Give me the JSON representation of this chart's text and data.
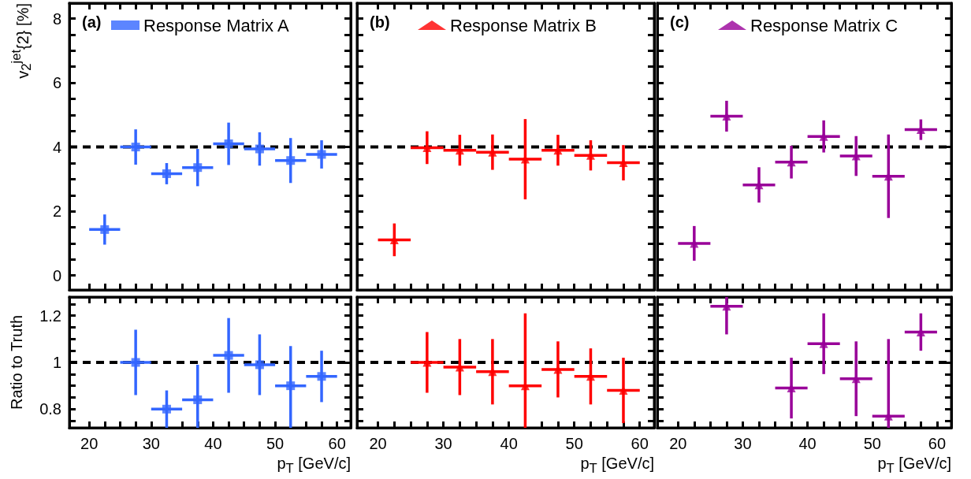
{
  "chart_data": [
    {
      "type": "scatter",
      "ylabel": "v$_{2}$$^{jet}${2} [%]",
      "annotations": [
        "(a)"
      ],
      "legend": "top left",
      "marker": "square",
      "tick_labels": "y",
      "xlim": [
        16.8,
        62.2
      ],
      "ylim": [
        -0.45,
        8.48
      ],
      "xticks": [
        20,
        {
          "value": 22.5,
          "label": null
        },
        {
          "value": 25,
          "label": null
        },
        {
          "value": 27.5,
          "label": null
        },
        30,
        {
          "value": 32.5,
          "label": null
        },
        {
          "value": 35,
          "label": null
        },
        {
          "value": 37.5,
          "label": null
        },
        40,
        {
          "value": 42.5,
          "label": null
        },
        {
          "value": 45,
          "label": null
        },
        {
          "value": 47.5,
          "label": null
        },
        50,
        {
          "value": 52.5,
          "label": null
        },
        {
          "value": 55,
          "label": null
        },
        {
          "value": 57.5,
          "label": null
        },
        60
      ],
      "yticks": [
        0,
        {
          "value": 0.5,
          "label": null
        },
        {
          "value": 1,
          "label": null
        },
        {
          "value": 1.5,
          "label": null
        },
        2,
        {
          "value": 2.5,
          "label": null
        },
        {
          "value": 3,
          "label": null
        },
        {
          "value": 3.5,
          "label": null
        },
        4,
        {
          "value": 4.5,
          "label": null
        },
        {
          "value": 5,
          "label": null
        },
        {
          "value": 5.5,
          "label": null
        },
        6,
        {
          "value": 6.5,
          "label": null
        },
        {
          "value": 7,
          "label": null
        },
        {
          "value": 7.5,
          "label": null
        },
        8
      ],
      "ref_lines": [
        {
          "axis": "y",
          "value": 4,
          "line_style": "dashed",
          "color": "#000000"
        }
      ],
      "x": [
        22.5,
        27.5,
        32.5,
        37.5,
        42.5,
        47.5,
        52.5,
        57.5
      ],
      "series": [
        {
          "name": "Response Matrix A",
          "color": "#3366ff",
          "values": [
            1.43,
            4.0,
            3.17,
            3.36,
            4.1,
            3.94,
            3.58,
            3.77
          ],
          "errors": [
            0.47,
            0.55,
            0.33,
            0.58,
            0.66,
            0.52,
            0.7,
            0.44
          ],
          "xerrors": [
            2.5,
            2.5,
            2.5,
            2.5,
            2.5,
            2.5,
            2.5,
            2.5
          ]
        }
      ]
    },
    {
      "type": "scatter",
      "annotations": [
        "(b)"
      ],
      "legend": "top left",
      "marker": "triangle",
      "tick_labels": false,
      "xlim": [
        16.8,
        62.2
      ],
      "ylim": [
        -0.45,
        8.48
      ],
      "xticks": [
        20,
        {
          "value": 22.5,
          "label": null
        },
        {
          "value": 25,
          "label": null
        },
        {
          "value": 27.5,
          "label": null
        },
        30,
        {
          "value": 32.5,
          "label": null
        },
        {
          "value": 35,
          "label": null
        },
        {
          "value": 37.5,
          "label": null
        },
        40,
        {
          "value": 42.5,
          "label": null
        },
        {
          "value": 45,
          "label": null
        },
        {
          "value": 47.5,
          "label": null
        },
        50,
        {
          "value": 52.5,
          "label": null
        },
        {
          "value": 55,
          "label": null
        },
        {
          "value": 57.5,
          "label": null
        },
        60
      ],
      "yticks": [
        0,
        {
          "value": 0.5,
          "label": null
        },
        {
          "value": 1,
          "label": null
        },
        {
          "value": 1.5,
          "label": null
        },
        2,
        {
          "value": 2.5,
          "label": null
        },
        {
          "value": 3,
          "label": null
        },
        {
          "value": 3.5,
          "label": null
        },
        4,
        {
          "value": 4.5,
          "label": null
        },
        {
          "value": 5,
          "label": null
        },
        {
          "value": 5.5,
          "label": null
        },
        6,
        {
          "value": 6.5,
          "label": null
        },
        {
          "value": 7,
          "label": null
        },
        {
          "value": 7.5,
          "label": null
        },
        8
      ],
      "ref_lines": [
        {
          "axis": "y",
          "value": 4,
          "line_style": "dashed",
          "color": "#000000"
        }
      ],
      "x": [
        22.5,
        27.5,
        32.5,
        37.5,
        42.5,
        47.5,
        52.5,
        57.5
      ],
      "series": [
        {
          "name": "Response Matrix B",
          "color": "#ff0000",
          "values": [
            1.11,
            3.98,
            3.9,
            3.84,
            3.62,
            3.9,
            3.74,
            3.51
          ],
          "errors": [
            0.51,
            0.51,
            0.48,
            0.55,
            1.25,
            0.48,
            0.47,
            0.55
          ],
          "xerrors": [
            2.5,
            2.5,
            2.5,
            2.5,
            2.5,
            2.5,
            2.5,
            2.5
          ]
        }
      ]
    },
    {
      "type": "scatter",
      "annotations": [
        "(c)"
      ],
      "legend": "top left",
      "marker": "triangle",
      "tick_labels": false,
      "xlim": [
        16.8,
        62.2
      ],
      "ylim": [
        -0.45,
        8.48
      ],
      "xticks": [
        20,
        {
          "value": 22.5,
          "label": null
        },
        {
          "value": 25,
          "label": null
        },
        {
          "value": 27.5,
          "label": null
        },
        30,
        {
          "value": 32.5,
          "label": null
        },
        {
          "value": 35,
          "label": null
        },
        {
          "value": 37.5,
          "label": null
        },
        40,
        {
          "value": 42.5,
          "label": null
        },
        {
          "value": 45,
          "label": null
        },
        {
          "value": 47.5,
          "label": null
        },
        50,
        {
          "value": 52.5,
          "label": null
        },
        {
          "value": 55,
          "label": null
        },
        {
          "value": 57.5,
          "label": null
        },
        60
      ],
      "yticks": [
        0,
        {
          "value": 0.5,
          "label": null
        },
        {
          "value": 1,
          "label": null
        },
        {
          "value": 1.5,
          "label": null
        },
        2,
        {
          "value": 2.5,
          "label": null
        },
        {
          "value": 3,
          "label": null
        },
        {
          "value": 3.5,
          "label": null
        },
        4,
        {
          "value": 4.5,
          "label": null
        },
        {
          "value": 5,
          "label": null
        },
        {
          "value": 5.5,
          "label": null
        },
        6,
        {
          "value": 6.5,
          "label": null
        },
        {
          "value": 7,
          "label": null
        },
        {
          "value": 7.5,
          "label": null
        },
        8
      ],
      "ref_lines": [
        {
          "axis": "y",
          "value": 4,
          "line_style": "dashed",
          "color": "#000000"
        }
      ],
      "x": [
        22.5,
        27.5,
        32.5,
        37.5,
        42.5,
        47.5,
        52.5,
        57.5
      ],
      "series": [
        {
          "name": "Response Matrix C",
          "color": "#990099",
          "values": [
            1.0,
            4.96,
            2.82,
            3.53,
            4.33,
            3.72,
            3.09,
            4.54
          ],
          "errors": [
            0.54,
            0.48,
            0.55,
            0.51,
            0.5,
            0.62,
            1.3,
            0.32
          ],
          "xerrors": [
            2.5,
            2.5,
            2.5,
            2.5,
            2.5,
            2.5,
            2.5,
            2.5
          ]
        }
      ]
    },
    {
      "type": "scatter",
      "ylabel": "Ratio to Truth",
      "xlabel": "p$_{T}$ [GeV/c]",
      "marker": "square",
      "xlim": [
        16.8,
        62.2
      ],
      "ylim": [
        0.72,
        1.28
      ],
      "xticks": [
        20,
        {
          "value": 22.5,
          "label": null
        },
        {
          "value": 25,
          "label": null
        },
        {
          "value": 27.5,
          "label": null
        },
        30,
        {
          "value": 32.5,
          "label": null
        },
        {
          "value": 35,
          "label": null
        },
        {
          "value": 37.5,
          "label": null
        },
        40,
        {
          "value": 42.5,
          "label": null
        },
        {
          "value": 45,
          "label": null
        },
        {
          "value": 47.5,
          "label": null
        },
        50,
        {
          "value": 52.5,
          "label": null
        },
        {
          "value": 55,
          "label": null
        },
        {
          "value": 57.5,
          "label": null
        },
        60
      ],
      "yticks": [
        {
          "value": 0.75,
          "label": null
        },
        0.8,
        {
          "value": 0.85,
          "label": null
        },
        {
          "value": 0.9,
          "label": null
        },
        {
          "value": 0.95,
          "label": null
        },
        1,
        {
          "value": 1.05,
          "label": null
        },
        {
          "value": 1.1,
          "label": null
        },
        {
          "value": 1.15,
          "label": null
        },
        1.2,
        {
          "value": 1.25,
          "label": null
        }
      ],
      "ref_lines": [
        {
          "axis": "y",
          "value": 1,
          "line_style": "dashed",
          "color": "#000000"
        }
      ],
      "series": [
        {
          "color": "#3366ff",
          "x": [
            27.5,
            32.5,
            37.5,
            42.5,
            47.5,
            52.5,
            57.5
          ],
          "values": [
            1.0,
            0.8,
            0.84,
            1.03,
            0.99,
            0.9,
            0.94
          ],
          "errors": [
            0.14,
            [
              0.72,
              0.88
            ],
            [
              0.72,
              0.99
            ],
            0.16,
            0.13,
            [
              0.72,
              1.07
            ],
            0.11
          ],
          "xerrors": [
            2.5,
            2.5,
            2.5,
            2.5,
            2.5,
            2.5,
            2.5
          ]
        }
      ]
    },
    {
      "type": "scatter",
      "xlabel": "p$_{T}$ [GeV/c]",
      "marker": "triangle",
      "tick_labels": "x",
      "xlim": [
        16.8,
        62.2
      ],
      "ylim": [
        0.72,
        1.28
      ],
      "xticks": [
        20,
        {
          "value": 22.5,
          "label": null
        },
        {
          "value": 25,
          "label": null
        },
        {
          "value": 27.5,
          "label": null
        },
        30,
        {
          "value": 32.5,
          "label": null
        },
        {
          "value": 35,
          "label": null
        },
        {
          "value": 37.5,
          "label": null
        },
        40,
        {
          "value": 42.5,
          "label": null
        },
        {
          "value": 45,
          "label": null
        },
        {
          "value": 47.5,
          "label": null
        },
        50,
        {
          "value": 52.5,
          "label": null
        },
        {
          "value": 55,
          "label": null
        },
        {
          "value": 57.5,
          "label": null
        },
        60
      ],
      "yticks": [
        {
          "value": 0.75,
          "label": null
        },
        0.8,
        {
          "value": 0.85,
          "label": null
        },
        {
          "value": 0.9,
          "label": null
        },
        {
          "value": 0.95,
          "label": null
        },
        1,
        {
          "value": 1.05,
          "label": null
        },
        {
          "value": 1.1,
          "label": null
        },
        {
          "value": 1.15,
          "label": null
        },
        1.2,
        {
          "value": 1.25,
          "label": null
        }
      ],
      "ref_lines": [
        {
          "axis": "y",
          "value": 1,
          "line_style": "dashed",
          "color": "#000000"
        }
      ],
      "series": [
        {
          "color": "#ff0000",
          "x": [
            27.5,
            32.5,
            37.5,
            42.5,
            47.5,
            52.5,
            57.5
          ],
          "values": [
            1.0,
            0.98,
            0.96,
            0.9,
            0.97,
            0.94,
            0.88
          ],
          "errors": [
            0.13,
            0.12,
            0.14,
            [
              0.72,
              1.21
            ],
            0.12,
            0.12,
            0.14
          ],
          "xerrors": [
            2.5,
            2.5,
            2.5,
            2.5,
            2.5,
            2.5,
            2.5
          ]
        }
      ]
    },
    {
      "type": "scatter",
      "xlabel": "p$_{T}$ [GeV/c]",
      "marker": "triangle",
      "tick_labels": "x",
      "xlim": [
        16.8,
        62.2
      ],
      "ylim": [
        0.72,
        1.28
      ],
      "xticks": [
        20,
        {
          "value": 22.5,
          "label": null
        },
        {
          "value": 25,
          "label": null
        },
        {
          "value": 27.5,
          "label": null
        },
        30,
        {
          "value": 32.5,
          "label": null
        },
        {
          "value": 35,
          "label": null
        },
        {
          "value": 37.5,
          "label": null
        },
        40,
        {
          "value": 42.5,
          "label": null
        },
        {
          "value": 45,
          "label": null
        },
        {
          "value": 47.5,
          "label": null
        },
        50,
        {
          "value": 52.5,
          "label": null
        },
        {
          "value": 55,
          "label": null
        },
        {
          "value": 57.5,
          "label": null
        },
        60
      ],
      "yticks": [
        {
          "value": 0.75,
          "label": null
        },
        0.8,
        {
          "value": 0.85,
          "label": null
        },
        {
          "value": 0.9,
          "label": null
        },
        {
          "value": 0.95,
          "label": null
        },
        1,
        {
          "value": 1.05,
          "label": null
        },
        {
          "value": 1.1,
          "label": null
        },
        {
          "value": 1.15,
          "label": null
        },
        1.2,
        {
          "value": 1.25,
          "label": null
        }
      ],
      "ref_lines": [
        {
          "axis": "y",
          "value": 1,
          "line_style": "dashed",
          "color": "#000000"
        }
      ],
      "series": [
        {
          "color": "#990099",
          "x": [
            27.5,
            37.5,
            42.5,
            47.5,
            52.5,
            57.5
          ],
          "values": [
            1.24,
            0.89,
            1.08,
            0.93,
            0.77,
            1.13
          ],
          "errors": [
            [
              1.12,
              1.28
            ],
            0.13,
            0.13,
            0.16,
            [
              0.72,
              1.1
            ],
            0.08
          ],
          "xerrors": [
            2.5,
            2.5,
            2.5,
            2.5,
            2.5,
            2.5
          ]
        }
      ]
    }
  ]
}
